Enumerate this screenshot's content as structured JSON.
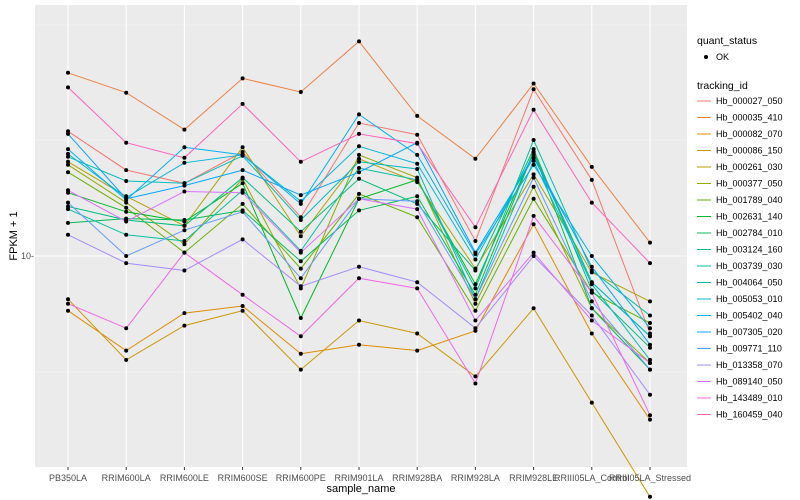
{
  "chart_data": {
    "type": "line",
    "xlabel": "sample_name",
    "ylabel": "FPKM + 1",
    "y_scale": "log",
    "y_ticks": [
      {
        "value": 10,
        "label": "10-"
      }
    ],
    "grid": true,
    "background": "#ebebeb",
    "legend_position": "right",
    "categories": [
      "PB350LA",
      "RRIM600LA",
      "RRIM600LE",
      "RRIM600SE",
      "RRIM600PE",
      "RRIM901LA",
      "RRIM928BA",
      "RRIM928LA",
      "RRIM928LE",
      "RRIII05LA_Control",
      "RRIII05LA_Stressed"
    ],
    "points_legend": {
      "title": "quant_status",
      "entries": [
        "OK"
      ]
    },
    "lines_legend_title": "tracking_id",
    "series": [
      {
        "name": "Hb_000027_050",
        "color": "#F8766D",
        "values": [
          20.5,
          16.4,
          15.2,
          18.2,
          12.5,
          21.5,
          20.1,
          10.9,
          26.1,
          15.5,
          6.4
        ]
      },
      {
        "name": "Hb_000035_410",
        "color": "#EE8043",
        "values": [
          28.7,
          25.6,
          20.7,
          27.8,
          25.7,
          34.4,
          22.4,
          17.5,
          27.0,
          16.7,
          10.8
        ]
      },
      {
        "name": "Hb_000082_070",
        "color": "#DF8B00",
        "values": [
          7.3,
          5.8,
          7.2,
          7.5,
          5.7,
          6.0,
          5.8,
          6.5,
          12.0,
          6.4,
          3.9
        ]
      },
      {
        "name": "Hb_000086_150",
        "color": "#CB9600",
        "values": [
          7.8,
          5.5,
          6.7,
          7.3,
          5.2,
          6.9,
          6.4,
          5.0,
          7.4,
          4.3,
          2.5
        ]
      },
      {
        "name": "Hb_000261_030",
        "color": "#B2A100",
        "values": [
          17.2,
          14.1,
          11.9,
          18.7,
          11.2,
          17.5,
          15.3,
          9.3,
          16.0,
          9.1,
          7.7
        ]
      },
      {
        "name": "Hb_000377_050",
        "color": "#93AA00",
        "values": [
          16.9,
          13.6,
          10.7,
          15.6,
          8.3,
          17.9,
          15.7,
          7.6,
          14.9,
          7.4,
          5.4
        ]
      },
      {
        "name": "Hb_001789_040",
        "color": "#68B100",
        "values": [
          16.2,
          13.2,
          10.2,
          13.5,
          9.3,
          14.3,
          12.5,
          7.3,
          13.9,
          8.1,
          6.8
        ]
      },
      {
        "name": "Hb_002631_140",
        "color": "#00B826",
        "values": [
          14.4,
          12.9,
          12.2,
          15.2,
          7.0,
          13.9,
          15.5,
          8.5,
          18.2,
          8.6,
          6.3
        ]
      },
      {
        "name": "Hb_002784_010",
        "color": "#00BC56",
        "values": [
          12.1,
          12.4,
          12.3,
          13.0,
          9.7,
          13.0,
          14.1,
          8.0,
          18.2,
          7.4,
          5.2
        ]
      },
      {
        "name": "Hb_003124_160",
        "color": "#00BE7D",
        "values": [
          13.3,
          12.3,
          11.9,
          15.7,
          11.5,
          15.6,
          13.5,
          9.2,
          18.5,
          8.2,
          5.9
        ]
      },
      {
        "name": "Hb_003739_030",
        "color": "#00BF9E",
        "values": [
          13.1,
          11.3,
          10.9,
          14.6,
          10.3,
          16.6,
          15.5,
          8.3,
          19.5,
          9.2,
          7.1
        ]
      },
      {
        "name": "Hb_004064_050",
        "color": "#00BDBD",
        "values": [
          17.7,
          15.4,
          15.2,
          17.8,
          12.3,
          17.2,
          16.5,
          7.8,
          17.3,
          8.5,
          5.5
        ]
      },
      {
        "name": "Hb_005053_010",
        "color": "#00B9D8",
        "values": [
          18.0,
          14.0,
          17.1,
          17.9,
          13.7,
          18.8,
          17.0,
          9.8,
          17.9,
          8.6,
          6.3
        ]
      },
      {
        "name": "Hb_005402_040",
        "color": "#00B1F0",
        "values": [
          18.5,
          13.8,
          18.7,
          17.9,
          13.5,
          22.6,
          17.9,
          10.1,
          16.9,
          10.0,
          6.6
        ]
      },
      {
        "name": "Hb_007305_020",
        "color": "#00A5FF",
        "values": [
          20.2,
          13.9,
          15.0,
          16.4,
          14.2,
          16.2,
          19.2,
          10.2,
          17.6,
          9.4,
          6.0
        ]
      },
      {
        "name": "Hb_009771_110",
        "color": "#619CFF",
        "values": [
          13.6,
          10.0,
          11.6,
          12.9,
          8.8,
          13.9,
          13.7,
          7.8,
          15.7,
          7.7,
          5.2
        ]
      },
      {
        "name": "Hb_013358_070",
        "color": "#A58AFF",
        "values": [
          11.3,
          9.6,
          9.2,
          11.0,
          8.4,
          9.4,
          8.6,
          6.6,
          10.0,
          7.1,
          4.5
        ]
      },
      {
        "name": "Hb_089140_050",
        "color": "#DB72FB",
        "values": [
          14.6,
          12.2,
          14.5,
          14.4,
          10.2,
          13.9,
          13.1,
          6.9,
          10.2,
          6.9,
          5.4
        ]
      },
      {
        "name": "Hb_143489_010",
        "color": "#F265E7",
        "values": [
          7.6,
          6.6,
          10.2,
          8.0,
          6.3,
          8.8,
          8.3,
          4.8,
          12.6,
          8.1,
          4.0
        ]
      },
      {
        "name": "Hb_160459_040",
        "color": "#FF62BC",
        "values": [
          26.4,
          19.2,
          17.6,
          24.0,
          17.2,
          20.2,
          19.1,
          11.8,
          23.2,
          13.6,
          9.6
        ]
      }
    ]
  }
}
